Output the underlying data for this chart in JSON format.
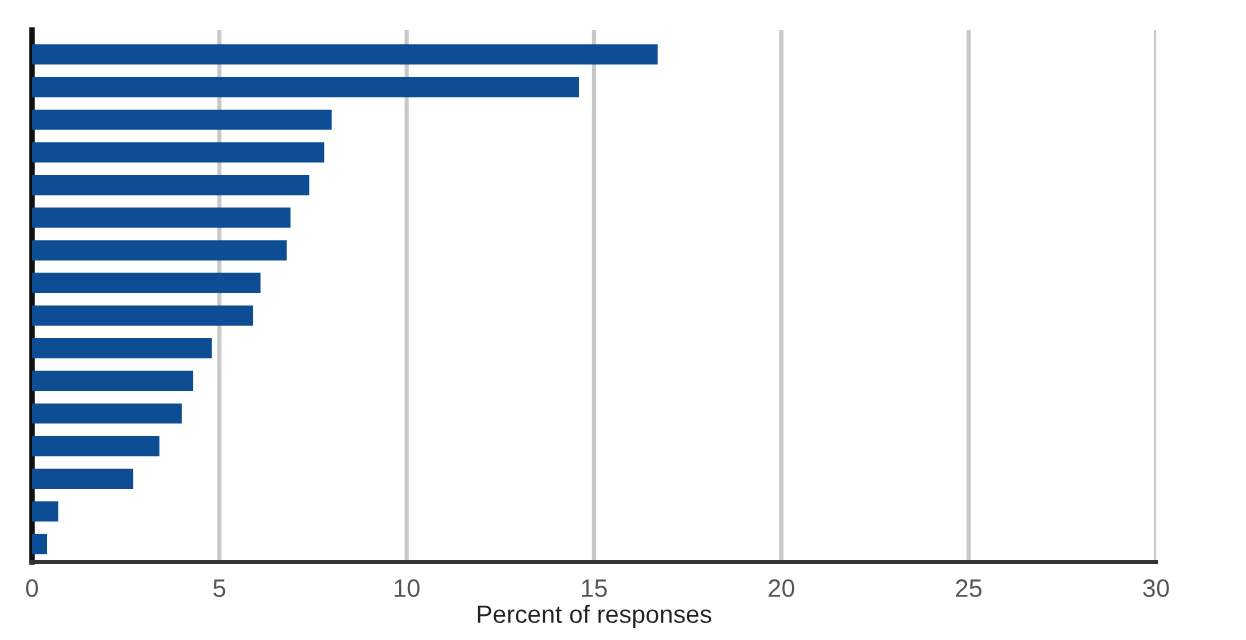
{
  "chart_data": {
    "type": "bar",
    "orientation": "horizontal",
    "xlabel": "Percent of responses",
    "categories": [
      null,
      null,
      null,
      null,
      null,
      null,
      null,
      null,
      null,
      null,
      null,
      null,
      null,
      null,
      null,
      null
    ],
    "values": [
      16.7,
      14.6,
      8.0,
      7.8,
      7.4,
      6.9,
      6.8,
      6.1,
      5.9,
      4.8,
      4.3,
      4.0,
      3.4,
      2.7,
      0.7,
      0.4
    ],
    "color": "#0d4d94",
    "xlim": [
      0,
      30
    ],
    "xticks": [
      0,
      5,
      10,
      15,
      20,
      25,
      30
    ],
    "grid": "x"
  }
}
